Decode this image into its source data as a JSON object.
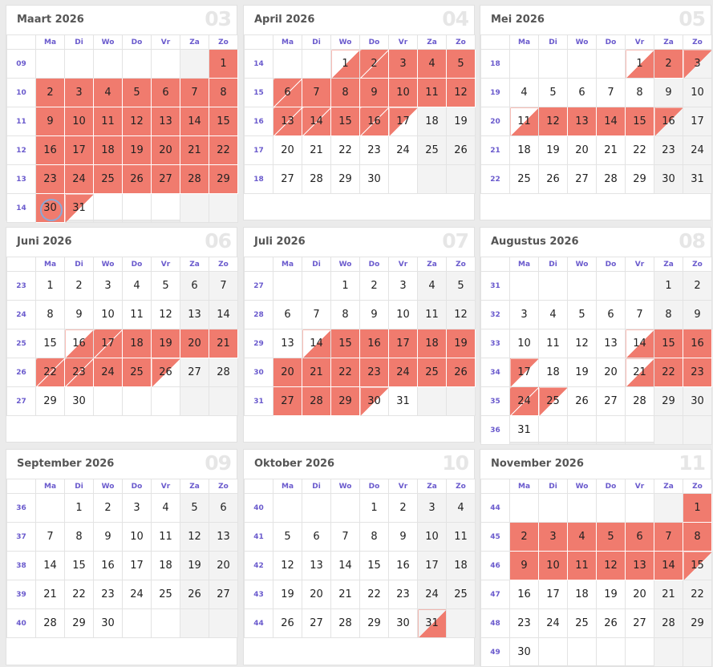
{
  "weekdays": [
    "Ma",
    "Di",
    "Wo",
    "Do",
    "Vr",
    "Za",
    "Zo"
  ],
  "colors": {
    "vacation": "#f07b6e",
    "weekend": "#f3f3f3",
    "week_number": "#6a5acd",
    "today_ring": "#8aa7d6"
  },
  "months": [
    {
      "title": "Maart 2026",
      "number": "03",
      "weeks": [
        {
          "wk": "09",
          "days": [
            "",
            "",
            "",
            "",
            "",
            "",
            "1"
          ],
          "marks": [
            "",
            "",
            "",
            "",
            "",
            "",
            "full"
          ]
        },
        {
          "wk": "10",
          "days": [
            "2",
            "3",
            "4",
            "5",
            "6",
            "7",
            "8"
          ],
          "marks": [
            "full",
            "full",
            "full",
            "full",
            "full",
            "full",
            "full"
          ]
        },
        {
          "wk": "11",
          "days": [
            "9",
            "10",
            "11",
            "12",
            "13",
            "14",
            "15"
          ],
          "marks": [
            "full",
            "full",
            "full",
            "full",
            "full",
            "full",
            "full"
          ]
        },
        {
          "wk": "12",
          "days": [
            "16",
            "17",
            "18",
            "19",
            "20",
            "21",
            "22"
          ],
          "marks": [
            "full",
            "full",
            "full",
            "full",
            "full",
            "full",
            "full"
          ]
        },
        {
          "wk": "13",
          "days": [
            "23",
            "24",
            "25",
            "26",
            "27",
            "28",
            "29"
          ],
          "marks": [
            "full",
            "full",
            "full",
            "full",
            "full",
            "full",
            "full"
          ]
        },
        {
          "wk": "14",
          "days": [
            "30",
            "31",
            "",
            "",
            "",
            "",
            ""
          ],
          "marks": [
            "full today",
            "halfend",
            "",
            "",
            "",
            "",
            ""
          ]
        }
      ]
    },
    {
      "title": "April 2026",
      "number": "04",
      "weeks": [
        {
          "wk": "14",
          "days": [
            "",
            "",
            "1",
            "2",
            "3",
            "4",
            "5"
          ],
          "marks": [
            "",
            "",
            "half",
            "both",
            "full",
            "full",
            "full"
          ]
        },
        {
          "wk": "15",
          "days": [
            "6",
            "7",
            "8",
            "9",
            "10",
            "11",
            "12"
          ],
          "marks": [
            "both",
            "full",
            "full",
            "full",
            "full",
            "full",
            "full"
          ]
        },
        {
          "wk": "16",
          "days": [
            "13",
            "14",
            "15",
            "16",
            "17",
            "18",
            "19"
          ],
          "marks": [
            "both",
            "both",
            "full",
            "both",
            "halfend",
            "",
            ""
          ]
        },
        {
          "wk": "17",
          "days": [
            "20",
            "21",
            "22",
            "23",
            "24",
            "25",
            "26"
          ],
          "marks": [
            "",
            "",
            "",
            "",
            "",
            "",
            ""
          ]
        },
        {
          "wk": "18",
          "days": [
            "27",
            "28",
            "29",
            "30",
            "",
            "",
            ""
          ],
          "marks": [
            "",
            "",
            "",
            "",
            "",
            "",
            ""
          ]
        }
      ]
    },
    {
      "title": "Mei 2026",
      "number": "05",
      "weeks": [
        {
          "wk": "18",
          "days": [
            "",
            "",
            "",
            "",
            "1",
            "2",
            "3"
          ],
          "marks": [
            "",
            "",
            "",
            "",
            "half",
            "full",
            "halfend"
          ]
        },
        {
          "wk": "19",
          "days": [
            "4",
            "5",
            "6",
            "7",
            "8",
            "9",
            "10"
          ],
          "marks": [
            "",
            "",
            "",
            "",
            "",
            "",
            ""
          ]
        },
        {
          "wk": "20",
          "days": [
            "11",
            "12",
            "13",
            "14",
            "15",
            "16",
            "17"
          ],
          "marks": [
            "half",
            "full",
            "full",
            "full",
            "full",
            "halfend",
            ""
          ]
        },
        {
          "wk": "21",
          "days": [
            "18",
            "19",
            "20",
            "21",
            "22",
            "23",
            "24"
          ],
          "marks": [
            "",
            "",
            "",
            "",
            "",
            "",
            ""
          ]
        },
        {
          "wk": "22",
          "days": [
            "25",
            "26",
            "27",
            "28",
            "29",
            "30",
            "31"
          ],
          "marks": [
            "",
            "",
            "",
            "",
            "",
            "",
            ""
          ]
        }
      ]
    },
    {
      "title": "Juni 2026",
      "number": "06",
      "weeks": [
        {
          "wk": "23",
          "days": [
            "1",
            "2",
            "3",
            "4",
            "5",
            "6",
            "7"
          ],
          "marks": [
            "",
            "",
            "",
            "",
            "",
            "",
            ""
          ]
        },
        {
          "wk": "24",
          "days": [
            "8",
            "9",
            "10",
            "11",
            "12",
            "13",
            "14"
          ],
          "marks": [
            "",
            "",
            "",
            "",
            "",
            "",
            ""
          ]
        },
        {
          "wk": "25",
          "days": [
            "15",
            "16",
            "17",
            "18",
            "19",
            "20",
            "21"
          ],
          "marks": [
            "",
            "half",
            "both",
            "full",
            "full",
            "full",
            "full"
          ]
        },
        {
          "wk": "26",
          "days": [
            "22",
            "23",
            "24",
            "25",
            "26",
            "27",
            "28"
          ],
          "marks": [
            "both",
            "both",
            "full",
            "full",
            "halfend",
            "",
            ""
          ]
        },
        {
          "wk": "27",
          "days": [
            "29",
            "30",
            "",
            "",
            "",
            "",
            ""
          ],
          "marks": [
            "",
            "",
            "",
            "",
            "",
            "",
            ""
          ]
        }
      ]
    },
    {
      "title": "Juli 2026",
      "number": "07",
      "weeks": [
        {
          "wk": "27",
          "days": [
            "",
            "",
            "1",
            "2",
            "3",
            "4",
            "5"
          ],
          "marks": [
            "",
            "",
            "",
            "",
            "",
            "",
            ""
          ]
        },
        {
          "wk": "28",
          "days": [
            "6",
            "7",
            "8",
            "9",
            "10",
            "11",
            "12"
          ],
          "marks": [
            "",
            "",
            "",
            "",
            "",
            "",
            ""
          ]
        },
        {
          "wk": "29",
          "days": [
            "13",
            "14",
            "15",
            "16",
            "17",
            "18",
            "19"
          ],
          "marks": [
            "",
            "half",
            "full",
            "full",
            "full",
            "full",
            "full"
          ]
        },
        {
          "wk": "30",
          "days": [
            "20",
            "21",
            "22",
            "23",
            "24",
            "25",
            "26"
          ],
          "marks": [
            "full",
            "full",
            "full",
            "full",
            "full",
            "full",
            "full"
          ]
        },
        {
          "wk": "31",
          "days": [
            "27",
            "28",
            "29",
            "30",
            "31",
            "",
            ""
          ],
          "marks": [
            "full",
            "full",
            "full",
            "halfend",
            "",
            "",
            ""
          ]
        }
      ]
    },
    {
      "title": "Augustus 2026",
      "number": "08",
      "weeks": [
        {
          "wk": "31",
          "days": [
            "",
            "",
            "",
            "",
            "",
            "1",
            "2"
          ],
          "marks": [
            "",
            "",
            "",
            "",
            "",
            "",
            ""
          ]
        },
        {
          "wk": "32",
          "days": [
            "3",
            "4",
            "5",
            "6",
            "7",
            "8",
            "9"
          ],
          "marks": [
            "",
            "",
            "",
            "",
            "",
            "",
            ""
          ]
        },
        {
          "wk": "33",
          "days": [
            "10",
            "11",
            "12",
            "13",
            "14",
            "15",
            "16"
          ],
          "marks": [
            "",
            "",
            "",
            "",
            "half",
            "full",
            "full"
          ]
        },
        {
          "wk": "34",
          "days": [
            "17",
            "18",
            "19",
            "20",
            "21",
            "22",
            "23"
          ],
          "marks": [
            "halfend",
            "",
            "",
            "",
            "half",
            "full",
            "full"
          ]
        },
        {
          "wk": "35",
          "days": [
            "24",
            "25",
            "26",
            "27",
            "28",
            "29",
            "30"
          ],
          "marks": [
            "both",
            "halfend",
            "",
            "",
            "",
            "",
            ""
          ]
        },
        {
          "wk": "36",
          "days": [
            "31",
            "",
            "",
            "",
            "",
            "",
            ""
          ],
          "marks": [
            "",
            "",
            "",
            "",
            "",
            "",
            ""
          ]
        }
      ]
    },
    {
      "title": "September 2026",
      "number": "09",
      "weeks": [
        {
          "wk": "36",
          "days": [
            "",
            "1",
            "2",
            "3",
            "4",
            "5",
            "6"
          ],
          "marks": [
            "",
            "",
            "",
            "",
            "",
            "",
            ""
          ]
        },
        {
          "wk": "37",
          "days": [
            "7",
            "8",
            "9",
            "10",
            "11",
            "12",
            "13"
          ],
          "marks": [
            "",
            "",
            "",
            "",
            "",
            "",
            ""
          ]
        },
        {
          "wk": "38",
          "days": [
            "14",
            "15",
            "16",
            "17",
            "18",
            "19",
            "20"
          ],
          "marks": [
            "",
            "",
            "",
            "",
            "",
            "",
            ""
          ]
        },
        {
          "wk": "39",
          "days": [
            "21",
            "22",
            "23",
            "24",
            "25",
            "26",
            "27"
          ],
          "marks": [
            "",
            "",
            "",
            "",
            "",
            "",
            ""
          ]
        },
        {
          "wk": "40",
          "days": [
            "28",
            "29",
            "30",
            "",
            "",
            "",
            ""
          ],
          "marks": [
            "",
            "",
            "",
            "",
            "",
            "",
            ""
          ]
        }
      ]
    },
    {
      "title": "Oktober 2026",
      "number": "10",
      "weeks": [
        {
          "wk": "40",
          "days": [
            "",
            "",
            "",
            "1",
            "2",
            "3",
            "4"
          ],
          "marks": [
            "",
            "",
            "",
            "",
            "",
            "",
            ""
          ]
        },
        {
          "wk": "41",
          "days": [
            "5",
            "6",
            "7",
            "8",
            "9",
            "10",
            "11"
          ],
          "marks": [
            "",
            "",
            "",
            "",
            "",
            "",
            ""
          ]
        },
        {
          "wk": "42",
          "days": [
            "12",
            "13",
            "14",
            "15",
            "16",
            "17",
            "18"
          ],
          "marks": [
            "",
            "",
            "",
            "",
            "",
            "",
            ""
          ]
        },
        {
          "wk": "43",
          "days": [
            "19",
            "20",
            "21",
            "22",
            "23",
            "24",
            "25"
          ],
          "marks": [
            "",
            "",
            "",
            "",
            "",
            "",
            ""
          ]
        },
        {
          "wk": "44",
          "days": [
            "26",
            "27",
            "28",
            "29",
            "30",
            "31",
            ""
          ],
          "marks": [
            "",
            "",
            "",
            "",
            "",
            "half",
            ""
          ]
        }
      ]
    },
    {
      "title": "November 2026",
      "number": "11",
      "weeks": [
        {
          "wk": "44",
          "days": [
            "",
            "",
            "",
            "",
            "",
            "",
            "1"
          ],
          "marks": [
            "",
            "",
            "",
            "",
            "",
            "",
            "full"
          ]
        },
        {
          "wk": "45",
          "days": [
            "2",
            "3",
            "4",
            "5",
            "6",
            "7",
            "8"
          ],
          "marks": [
            "full",
            "full",
            "full",
            "full",
            "full",
            "full",
            "full"
          ]
        },
        {
          "wk": "46",
          "days": [
            "9",
            "10",
            "11",
            "12",
            "13",
            "14",
            "15"
          ],
          "marks": [
            "full",
            "full",
            "full",
            "full",
            "full",
            "full",
            "halfend"
          ]
        },
        {
          "wk": "47",
          "days": [
            "16",
            "17",
            "18",
            "19",
            "20",
            "21",
            "22"
          ],
          "marks": [
            "",
            "",
            "",
            "",
            "",
            "",
            ""
          ]
        },
        {
          "wk": "48",
          "days": [
            "23",
            "24",
            "25",
            "26",
            "27",
            "28",
            "29"
          ],
          "marks": [
            "",
            "",
            "",
            "",
            "",
            "",
            ""
          ]
        },
        {
          "wk": "49",
          "days": [
            "30",
            "",
            "",
            "",
            "",
            "",
            ""
          ],
          "marks": [
            "",
            "",
            "",
            "",
            "",
            "",
            ""
          ]
        }
      ]
    }
  ]
}
